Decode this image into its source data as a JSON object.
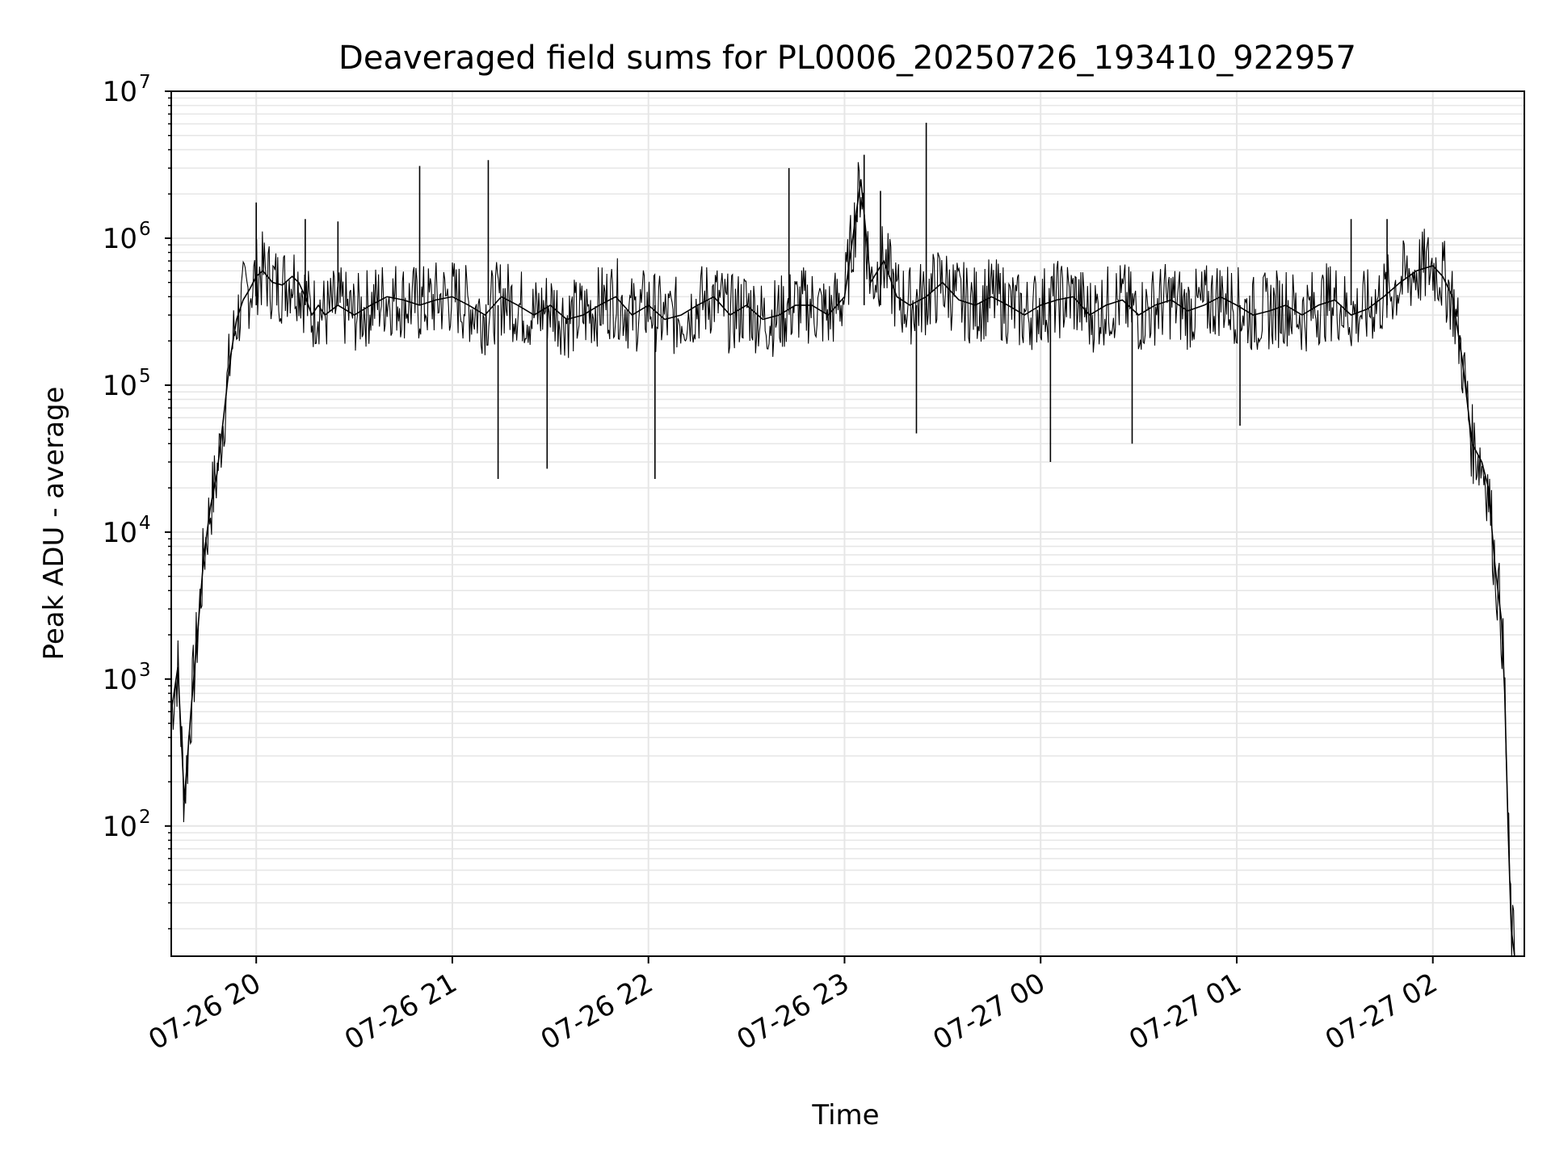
{
  "chart_data": {
    "type": "line",
    "title": "Deaveraged field sums for PL0006_20250726_193410_922957",
    "xlabel": "Time",
    "ylabel": "Peak ADU - average",
    "yscale": "log",
    "ylim": [
      13,
      10000000
    ],
    "xlim": [
      "2025-07-26 19:34",
      "2025-07-27 02:28"
    ],
    "x_tick_labels": [
      "07-26 20",
      "07-26 21",
      "07-26 22",
      "07-26 23",
      "07-27 00",
      "07-27 01",
      "07-27 02"
    ],
    "x_ticks": [
      "2025-07-26 20:00",
      "2025-07-26 21:00",
      "2025-07-26 22:00",
      "2025-07-26 23:00",
      "2025-07-27 00:00",
      "2025-07-27 01:00",
      "2025-07-27 02:00"
    ],
    "y_tick_labels": [
      {
        "base": "10",
        "exp": "2"
      },
      {
        "base": "10",
        "exp": "3"
      },
      {
        "base": "10",
        "exp": "4"
      },
      {
        "base": "10",
        "exp": "5"
      },
      {
        "base": "10",
        "exp": "6"
      },
      {
        "base": "10",
        "exp": "7"
      }
    ],
    "grid": true,
    "line_color": "#000000",
    "series": [
      {
        "x": [
          "2025-07-26 19:34",
          "2025-07-26 19:36",
          "2025-07-26 19:38",
          "2025-07-26 19:40",
          "2025-07-26 19:42",
          "2025-07-26 19:44",
          "2025-07-26 19:46",
          "2025-07-26 19:48",
          "2025-07-26 19:50",
          "2025-07-26 19:52",
          "2025-07-26 19:54",
          "2025-07-26 19:56",
          "2025-07-26 19:58",
          "2025-07-26 20:00",
          "2025-07-26 20:02",
          "2025-07-26 20:05",
          "2025-07-26 20:08",
          "2025-07-26 20:11",
          "2025-07-26 20:13",
          "2025-07-26 20:15",
          "2025-07-26 20:17",
          "2025-07-26 20:19",
          "2025-07-26 20:21",
          "2025-07-26 20:25",
          "2025-07-26 20:30",
          "2025-07-26 20:35",
          "2025-07-26 20:40",
          "2025-07-26 20:45",
          "2025-07-26 20:50",
          "2025-07-26 20:55",
          "2025-07-26 21:00",
          "2025-07-26 21:05",
          "2025-07-26 21:10",
          "2025-07-26 21:15",
          "2025-07-26 21:20",
          "2025-07-26 21:25",
          "2025-07-26 21:30",
          "2025-07-26 21:35",
          "2025-07-26 21:40",
          "2025-07-26 21:45",
          "2025-07-26 21:50",
          "2025-07-26 21:55",
          "2025-07-26 22:00",
          "2025-07-26 22:05",
          "2025-07-26 22:10",
          "2025-07-26 22:15",
          "2025-07-26 22:20",
          "2025-07-26 22:25",
          "2025-07-26 22:30",
          "2025-07-26 22:35",
          "2025-07-26 22:40",
          "2025-07-26 22:45",
          "2025-07-26 22:50",
          "2025-07-26 22:55",
          "2025-07-26 23:00",
          "2025-07-26 23:05",
          "2025-07-26 23:08",
          "2025-07-26 23:12",
          "2025-07-26 23:16",
          "2025-07-26 23:20",
          "2025-07-26 23:25",
          "2025-07-26 23:30",
          "2025-07-26 23:35",
          "2025-07-26 23:40",
          "2025-07-26 23:45",
          "2025-07-26 23:50",
          "2025-07-26 23:55",
          "2025-07-27 00:00",
          "2025-07-27 00:05",
          "2025-07-27 00:10",
          "2025-07-27 00:15",
          "2025-07-27 00:20",
          "2025-07-27 00:25",
          "2025-07-27 00:30",
          "2025-07-27 00:35",
          "2025-07-27 00:40",
          "2025-07-27 00:45",
          "2025-07-27 00:50",
          "2025-07-27 00:55",
          "2025-07-27 01:00",
          "2025-07-27 01:05",
          "2025-07-27 01:10",
          "2025-07-27 01:15",
          "2025-07-27 01:20",
          "2025-07-27 01:25",
          "2025-07-27 01:30",
          "2025-07-27 01:35",
          "2025-07-27 01:40",
          "2025-07-27 01:45",
          "2025-07-27 01:50",
          "2025-07-27 01:55",
          "2025-07-27 02:00",
          "2025-07-27 02:03",
          "2025-07-27 02:06",
          "2025-07-27 02:09",
          "2025-07-27 02:12",
          "2025-07-27 02:15",
          "2025-07-27 02:17",
          "2025-07-27 02:19",
          "2025-07-27 02:21",
          "2025-07-27 02:22",
          "2025-07-27 02:23",
          "2025-07-27 02:24",
          "2025-07-27 02:25"
        ],
        "y": [
          600,
          1200,
          150,
          600,
          2000,
          7000,
          15000,
          25000,
          60000,
          150000,
          280000,
          380000,
          450000,
          550000,
          600000,
          500000,
          480000,
          550000,
          500000,
          400000,
          300000,
          350000,
          300000,
          350000,
          300000,
          350000,
          400000,
          380000,
          350000,
          380000,
          400000,
          350000,
          300000,
          400000,
          350000,
          300000,
          350000,
          280000,
          300000,
          350000,
          400000,
          300000,
          350000,
          280000,
          300000,
          350000,
          400000,
          300000,
          350000,
          280000,
          300000,
          350000,
          350000,
          300000,
          400000,
          2500000,
          500000,
          700000,
          400000,
          350000,
          400000,
          500000,
          380000,
          350000,
          400000,
          350000,
          300000,
          350000,
          380000,
          400000,
          300000,
          350000,
          380000,
          300000,
          350000,
          380000,
          320000,
          350000,
          400000,
          350000,
          300000,
          320000,
          350000,
          300000,
          350000,
          380000,
          300000,
          330000,
          400000,
          500000,
          600000,
          650000,
          550000,
          400000,
          150000,
          40000,
          30000,
          20000,
          6000,
          2500,
          800,
          100,
          20,
          13
        ]
      }
    ],
    "spikes": [
      {
        "x": "2025-07-26 20:00",
        "y": 1750000
      },
      {
        "x": "2025-07-26 20:15",
        "y": 1350000
      },
      {
        "x": "2025-07-26 20:25",
        "y": 1300000
      },
      {
        "x": "2025-07-26 20:50",
        "y": 3100000
      },
      {
        "x": "2025-07-26 21:11",
        "y": 3400000
      },
      {
        "x": "2025-07-26 21:14",
        "y": 23000
      },
      {
        "x": "2025-07-26 21:29",
        "y": 27000
      },
      {
        "x": "2025-07-26 22:02",
        "y": 23000
      },
      {
        "x": "2025-07-26 22:43",
        "y": 3000000
      },
      {
        "x": "2025-07-26 23:06",
        "y": 3700000
      },
      {
        "x": "2025-07-26 23:11",
        "y": 2100000
      },
      {
        "x": "2025-07-26 23:22",
        "y": 47000
      },
      {
        "x": "2025-07-26 23:25",
        "y": 6100000
      },
      {
        "x": "2025-07-27 00:03",
        "y": 30000
      },
      {
        "x": "2025-07-27 00:28",
        "y": 40000
      },
      {
        "x": "2025-07-27 01:01",
        "y": 53000
      },
      {
        "x": "2025-07-27 01:35",
        "y": 1350000
      },
      {
        "x": "2025-07-27 01:46",
        "y": 1350000
      }
    ]
  }
}
